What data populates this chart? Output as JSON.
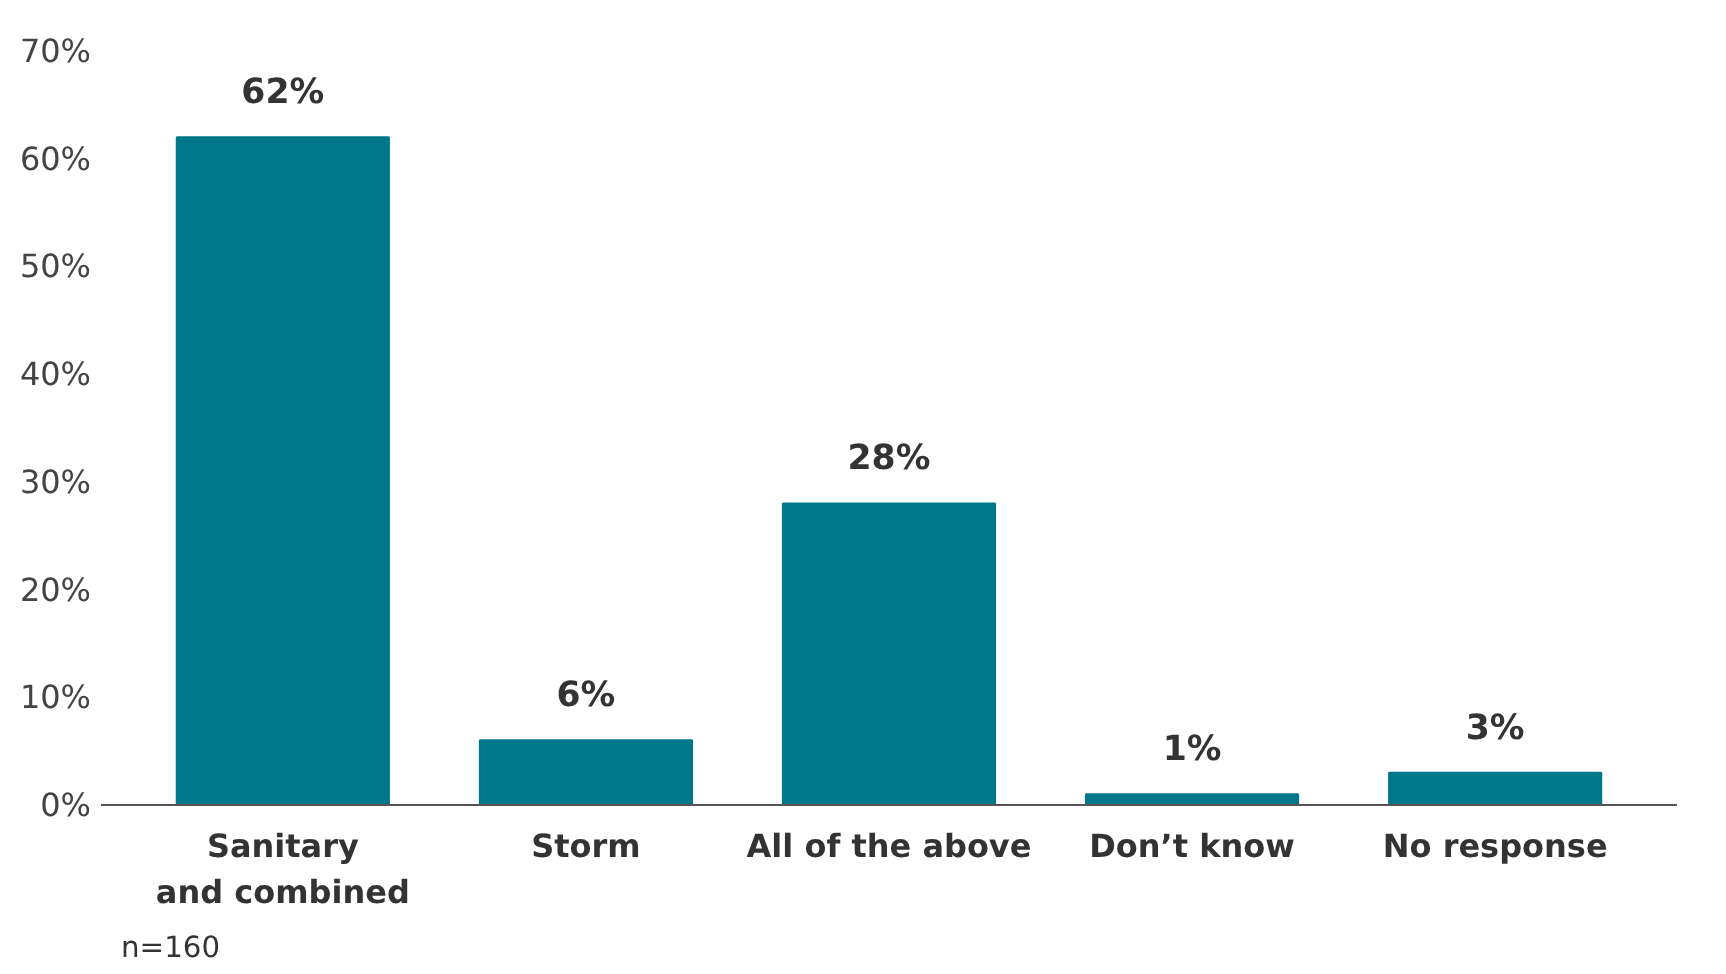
{
  "chart_data": {
    "type": "bar",
    "categories": [
      "Sanitary\nand combined",
      "Storm",
      "All of the above",
      "Don’t know",
      "No response"
    ],
    "values": [
      62,
      6,
      28,
      1,
      3
    ],
    "value_labels": [
      "62%",
      "6%",
      "28%",
      "1%",
      "3%"
    ],
    "color": "#00788a",
    "ylim": [
      0,
      70
    ],
    "yticks": [
      {
        "value": 0,
        "label": "0%"
      },
      {
        "value": 10,
        "label": "10%"
      },
      {
        "value": 20,
        "label": "20%"
      },
      {
        "value": 30,
        "label": "30%"
      },
      {
        "value": 40,
        "label": "40%"
      },
      {
        "value": 50,
        "label": "50%"
      },
      {
        "value": 60,
        "label": "60%"
      },
      {
        "value": 70,
        "label": "70%"
      }
    ],
    "grid": false,
    "annotations": [
      "n=160"
    ]
  }
}
